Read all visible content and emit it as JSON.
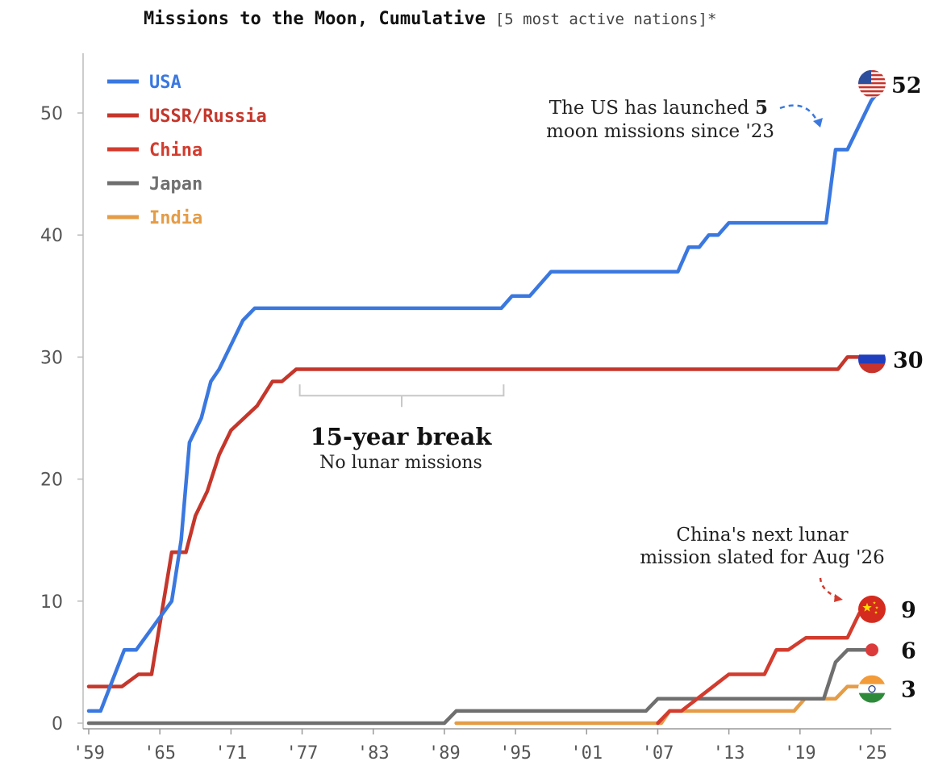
{
  "chart_data": {
    "type": "line",
    "title": "Missions to the Moon, Cumulative",
    "subtitle": "[5 most active nations]*",
    "xlabel": "",
    "ylabel": "",
    "xlim": [
      1959,
      2026
    ],
    "ylim": [
      0,
      55
    ],
    "x_ticks": [
      {
        "value": 1959,
        "label": "'59"
      },
      {
        "value": 1965,
        "label": "'65"
      },
      {
        "value": 1971,
        "label": "'71"
      },
      {
        "value": 1977,
        "label": "'77"
      },
      {
        "value": 1983,
        "label": "'83"
      },
      {
        "value": 1989,
        "label": "'89"
      },
      {
        "value": 1995,
        "label": "'95"
      },
      {
        "value": 2001,
        "label": "'01"
      },
      {
        "value": 2007,
        "label": "'07"
      },
      {
        "value": 2013,
        "label": "'13"
      },
      {
        "value": 2019,
        "label": "'19"
      },
      {
        "value": 2025,
        "label": "'25"
      }
    ],
    "y_ticks": [
      {
        "value": 0,
        "label": "0"
      },
      {
        "value": 10,
        "label": "10"
      },
      {
        "value": 20,
        "label": "20"
      },
      {
        "value": 30,
        "label": "30"
      },
      {
        "value": 40,
        "label": "40"
      },
      {
        "value": 50,
        "label": "50"
      }
    ],
    "legend_position": "top-left",
    "series": [
      {
        "name": "USA",
        "key": "usa",
        "color": "#3a78e0",
        "end_label": "52",
        "points": [
          [
            1959,
            1
          ],
          [
            1960,
            1
          ],
          [
            1962,
            6
          ],
          [
            1963,
            6
          ],
          [
            1966,
            10
          ],
          [
            1966.8,
            15
          ],
          [
            1967.5,
            23
          ],
          [
            1968.5,
            25
          ],
          [
            1969.3,
            28
          ],
          [
            1970,
            29
          ],
          [
            1971,
            31
          ],
          [
            1972,
            33
          ],
          [
            1973,
            34
          ],
          [
            1993.8,
            34
          ],
          [
            1994.7,
            35
          ],
          [
            1996.2,
            35
          ],
          [
            1998,
            37
          ],
          [
            2008.7,
            37
          ],
          [
            2009.6,
            39
          ],
          [
            2010.5,
            39
          ],
          [
            2011.3,
            40
          ],
          [
            2012.1,
            40
          ],
          [
            2013,
            41
          ],
          [
            2021.2,
            41
          ],
          [
            2022,
            47
          ],
          [
            2023,
            47
          ],
          [
            2025,
            51
          ],
          [
            2025.8,
            52
          ]
        ]
      },
      {
        "name": "USSR/Russia",
        "key": "russia",
        "color": "#c5362b",
        "end_label": "30",
        "points": [
          [
            1959,
            3
          ],
          [
            1961.8,
            3
          ],
          [
            1963.2,
            4
          ],
          [
            1964.3,
            4
          ],
          [
            1966,
            14
          ],
          [
            1967.2,
            14
          ],
          [
            1968,
            17
          ],
          [
            1969,
            19
          ],
          [
            1970,
            22
          ],
          [
            1971,
            24
          ],
          [
            1973.2,
            26
          ],
          [
            1974.5,
            28
          ],
          [
            1975.3,
            28
          ],
          [
            1976.5,
            29
          ],
          [
            2022.2,
            29
          ],
          [
            2023,
            30
          ],
          [
            2025.5,
            30
          ]
        ]
      },
      {
        "name": "China",
        "key": "china",
        "color": "#d23c2e",
        "end_label": "9",
        "points": [
          [
            2007,
            0
          ],
          [
            2008,
            1
          ],
          [
            2009,
            1
          ],
          [
            2013,
            4
          ],
          [
            2016,
            4
          ],
          [
            2017,
            6
          ],
          [
            2018,
            6
          ],
          [
            2019.5,
            7
          ],
          [
            2023,
            7
          ],
          [
            2024,
            9
          ],
          [
            2025,
            9
          ]
        ]
      },
      {
        "name": "Japan",
        "key": "japan",
        "color": "#6f6f6f",
        "end_label": "6",
        "points": [
          [
            1959,
            0
          ],
          [
            1989,
            0
          ],
          [
            1990,
            1
          ],
          [
            2006,
            1
          ],
          [
            2007,
            2
          ],
          [
            2021,
            2
          ],
          [
            2022,
            5
          ],
          [
            2023,
            6
          ],
          [
            2025,
            6
          ]
        ]
      },
      {
        "name": "India",
        "key": "india",
        "color": "#e59c46",
        "end_label": "3",
        "points": [
          [
            1990,
            0
          ],
          [
            2007.3,
            0
          ],
          [
            2008,
            1
          ],
          [
            2018.5,
            1
          ],
          [
            2019.4,
            2
          ],
          [
            2022,
            2
          ],
          [
            2023,
            3
          ],
          [
            2025,
            3
          ]
        ]
      }
    ],
    "annotations": {
      "break_title": "15-year break",
      "break_subtitle": "No lunar missions",
      "break_range": [
        1976.8,
        1994
      ],
      "break_y": 27.5,
      "us_note_pre": "The US has launched ",
      "us_note_bold": "5",
      "us_note_line2": "moon missions since '23",
      "china_note_line1": "China's next lunar",
      "china_note_line2": "mission slated for Aug '26"
    },
    "flags": {
      "usa": "us-flag",
      "russia": "russia-flag",
      "china": "china-flag",
      "japan": "japan-flag",
      "india": "india-flag"
    }
  }
}
